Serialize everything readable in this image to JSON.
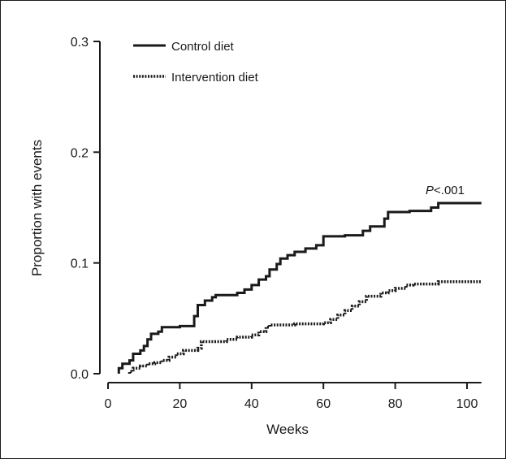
{
  "chart_data": {
    "type": "line",
    "xlabel": "Weeks",
    "ylabel": "Proportion with events",
    "xlim": [
      0,
      104
    ],
    "ylim": [
      0,
      0.3
    ],
    "xticks": [
      0,
      20,
      40,
      60,
      80,
      100
    ],
    "yticks": [
      0.0,
      0.1,
      0.2,
      0.3
    ],
    "xtick_labels": [
      "0",
      "20",
      "40",
      "60",
      "80",
      "100"
    ],
    "ytick_labels": [
      "0.0",
      "0.1",
      "0.2",
      "0.3"
    ],
    "grid": false,
    "legend_position": "top-left",
    "annotation": {
      "italic": "P",
      "rest": "<.001",
      "x": 90,
      "y": 0.163
    },
    "series": [
      {
        "name": "Control diet",
        "style": "solid",
        "color": "#1a1a1a",
        "points": [
          [
            3,
            0
          ],
          [
            3,
            0.005
          ],
          [
            4,
            0.005
          ],
          [
            4,
            0.009
          ],
          [
            6,
            0.009
          ],
          [
            6,
            0.012
          ],
          [
            7,
            0.012
          ],
          [
            7,
            0.018
          ],
          [
            9,
            0.018
          ],
          [
            9,
            0.021
          ],
          [
            10,
            0.021
          ],
          [
            10,
            0.025
          ],
          [
            11,
            0.025
          ],
          [
            11,
            0.031
          ],
          [
            12,
            0.031
          ],
          [
            12,
            0.036
          ],
          [
            14,
            0.036
          ],
          [
            14,
            0.038
          ],
          [
            15,
            0.038
          ],
          [
            15,
            0.042
          ],
          [
            20,
            0.042
          ],
          [
            20,
            0.043
          ],
          [
            24,
            0.043
          ],
          [
            24,
            0.052
          ],
          [
            25,
            0.052
          ],
          [
            25,
            0.062
          ],
          [
            27,
            0.062
          ],
          [
            27,
            0.066
          ],
          [
            29,
            0.066
          ],
          [
            29,
            0.069
          ],
          [
            30,
            0.069
          ],
          [
            30,
            0.071
          ],
          [
            36,
            0.071
          ],
          [
            36,
            0.073
          ],
          [
            38,
            0.073
          ],
          [
            38,
            0.076
          ],
          [
            40,
            0.076
          ],
          [
            40,
            0.08
          ],
          [
            42,
            0.08
          ],
          [
            42,
            0.085
          ],
          [
            44,
            0.085
          ],
          [
            44,
            0.088
          ],
          [
            45,
            0.088
          ],
          [
            45,
            0.094
          ],
          [
            47,
            0.094
          ],
          [
            47,
            0.099
          ],
          [
            48,
            0.099
          ],
          [
            48,
            0.104
          ],
          [
            50,
            0.104
          ],
          [
            50,
            0.107
          ],
          [
            52,
            0.107
          ],
          [
            52,
            0.11
          ],
          [
            55,
            0.11
          ],
          [
            55,
            0.113
          ],
          [
            58,
            0.113
          ],
          [
            58,
            0.116
          ],
          [
            60,
            0.116
          ],
          [
            60,
            0.124
          ],
          [
            66,
            0.124
          ],
          [
            66,
            0.125
          ],
          [
            71,
            0.125
          ],
          [
            71,
            0.129
          ],
          [
            73,
            0.129
          ],
          [
            73,
            0.133
          ],
          [
            77,
            0.133
          ],
          [
            77,
            0.14
          ],
          [
            78,
            0.14
          ],
          [
            78,
            0.146
          ],
          [
            84,
            0.146
          ],
          [
            84,
            0.147
          ],
          [
            90,
            0.147
          ],
          [
            90,
            0.15
          ],
          [
            92,
            0.15
          ],
          [
            92,
            0.154
          ],
          [
            104,
            0.154
          ]
        ]
      },
      {
        "name": "Intervention diet",
        "style": "dotted",
        "color": "#1a1a1a",
        "points": [
          [
            6,
            0
          ],
          [
            6,
            0.002
          ],
          [
            7,
            0.002
          ],
          [
            7,
            0.005
          ],
          [
            9,
            0.005
          ],
          [
            9,
            0.007
          ],
          [
            11,
            0.007
          ],
          [
            11,
            0.009
          ],
          [
            13,
            0.009
          ],
          [
            13,
            0.01
          ],
          [
            15,
            0.01
          ],
          [
            15,
            0.012
          ],
          [
            17,
            0.012
          ],
          [
            17,
            0.015
          ],
          [
            19,
            0.015
          ],
          [
            19,
            0.018
          ],
          [
            21,
            0.018
          ],
          [
            21,
            0.021
          ],
          [
            25,
            0.021
          ],
          [
            25,
            0.023
          ],
          [
            26,
            0.023
          ],
          [
            26,
            0.029
          ],
          [
            33,
            0.029
          ],
          [
            33,
            0.031
          ],
          [
            36,
            0.031
          ],
          [
            36,
            0.033
          ],
          [
            40,
            0.033
          ],
          [
            40,
            0.035
          ],
          [
            42,
            0.035
          ],
          [
            42,
            0.038
          ],
          [
            44,
            0.038
          ],
          [
            44,
            0.042
          ],
          [
            45,
            0.042
          ],
          [
            45,
            0.044
          ],
          [
            52,
            0.044
          ],
          [
            52,
            0.045
          ],
          [
            60,
            0.045
          ],
          [
            60,
            0.046
          ],
          [
            62,
            0.046
          ],
          [
            62,
            0.049
          ],
          [
            64,
            0.049
          ],
          [
            64,
            0.053
          ],
          [
            66,
            0.053
          ],
          [
            66,
            0.057
          ],
          [
            68,
            0.057
          ],
          [
            68,
            0.061
          ],
          [
            70,
            0.061
          ],
          [
            70,
            0.065
          ],
          [
            72,
            0.065
          ],
          [
            72,
            0.07
          ],
          [
            76,
            0.07
          ],
          [
            76,
            0.073
          ],
          [
            78,
            0.073
          ],
          [
            78,
            0.075
          ],
          [
            80,
            0.075
          ],
          [
            80,
            0.077
          ],
          [
            83,
            0.077
          ],
          [
            83,
            0.08
          ],
          [
            85,
            0.08
          ],
          [
            85,
            0.081
          ],
          [
            92,
            0.081
          ],
          [
            92,
            0.083
          ],
          [
            104,
            0.083
          ]
        ]
      }
    ]
  }
}
